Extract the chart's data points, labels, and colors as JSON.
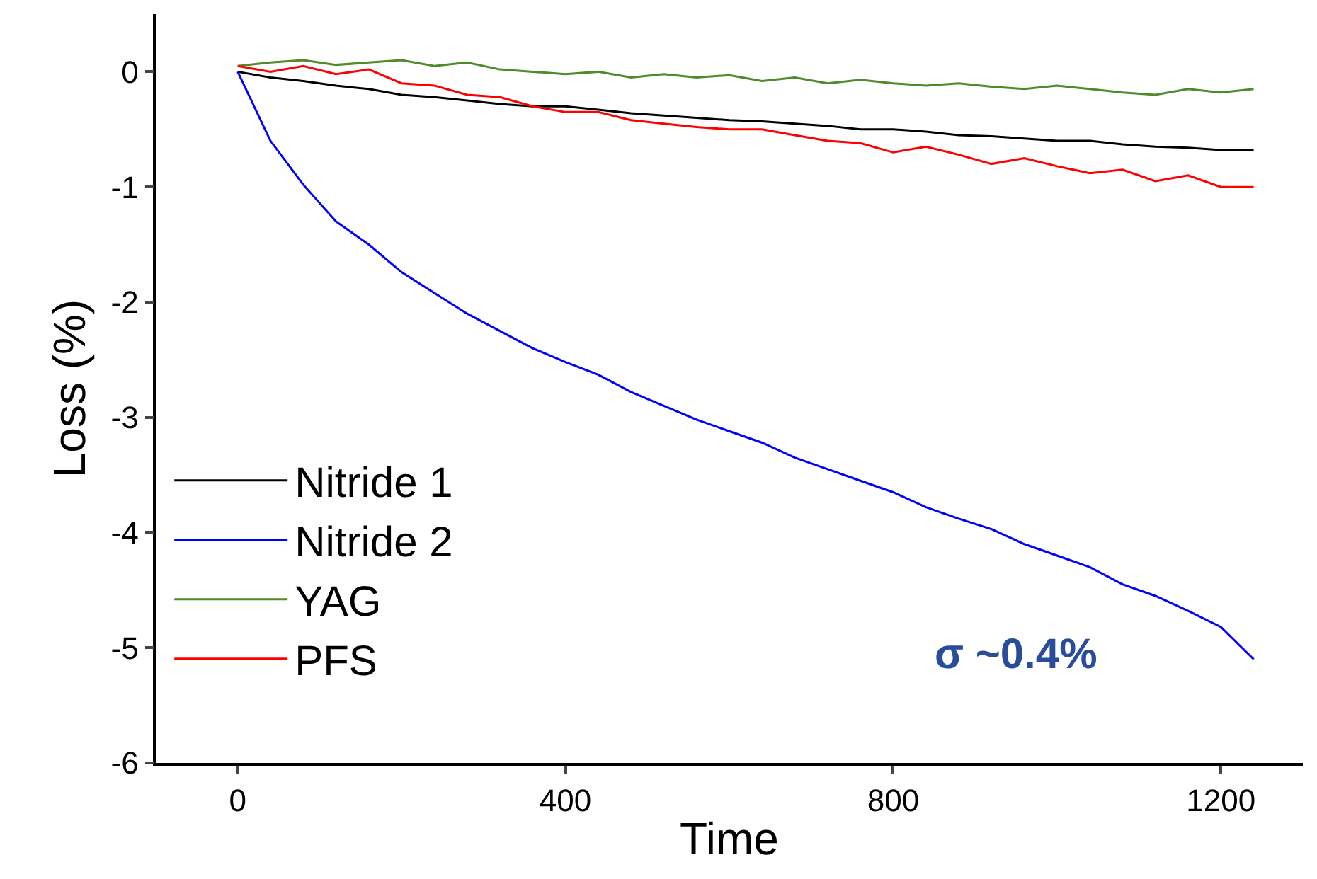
{
  "chart_data": {
    "type": "line",
    "xlabel": "Time",
    "ylabel": "Loss (%)",
    "x": [
      0,
      40,
      80,
      120,
      160,
      200,
      240,
      280,
      320,
      360,
      400,
      440,
      480,
      520,
      560,
      600,
      640,
      680,
      720,
      760,
      800,
      840,
      880,
      920,
      960,
      1000,
      1040,
      1080,
      1120,
      1160,
      1200,
      1240
    ],
    "series": [
      {
        "name": "Nitride 1",
        "color": "#000000",
        "values": [
          0,
          -0.05,
          -0.08,
          -0.12,
          -0.15,
          -0.2,
          -0.22,
          -0.25,
          -0.28,
          -0.3,
          -0.3,
          -0.33,
          -0.36,
          -0.38,
          -0.4,
          -0.42,
          -0.43,
          -0.45,
          -0.47,
          -0.5,
          -0.5,
          -0.52,
          -0.55,
          -0.56,
          -0.58,
          -0.6,
          -0.6,
          -0.63,
          -0.65,
          -0.66,
          -0.68,
          -0.68
        ]
      },
      {
        "name": "Nitride 2",
        "color": "#0000ff",
        "values": [
          0,
          -0.6,
          -0.98,
          -1.3,
          -1.5,
          -1.74,
          -1.92,
          -2.1,
          -2.25,
          -2.4,
          -2.52,
          -2.63,
          -2.78,
          -2.9,
          -3.02,
          -3.12,
          -3.22,
          -3.35,
          -3.45,
          -3.55,
          -3.65,
          -3.78,
          -3.88,
          -3.97,
          -4.1,
          -4.2,
          -4.3,
          -4.45,
          -4.55,
          -4.68,
          -4.82,
          -5.1
        ]
      },
      {
        "name": "YAG",
        "color": "#4f8a2b",
        "values": [
          0.05,
          0.08,
          0.1,
          0.06,
          0.08,
          0.1,
          0.05,
          0.08,
          0.02,
          0,
          -0.02,
          0,
          -0.05,
          -0.02,
          -0.05,
          -0.03,
          -0.08,
          -0.05,
          -0.1,
          -0.07,
          -0.1,
          -0.12,
          -0.1,
          -0.13,
          -0.15,
          -0.12,
          -0.15,
          -0.18,
          -0.2,
          -0.15,
          -0.18,
          -0.15
        ]
      },
      {
        "name": "PFS",
        "color": "#ff0000",
        "values": [
          0.05,
          0,
          0.05,
          -0.02,
          0.02,
          -0.1,
          -0.12,
          -0.2,
          -0.22,
          -0.3,
          -0.35,
          -0.35,
          -0.42,
          -0.45,
          -0.48,
          -0.5,
          -0.5,
          -0.55,
          -0.6,
          -0.62,
          -0.7,
          -0.65,
          -0.72,
          -0.8,
          -0.75,
          -0.82,
          -0.88,
          -0.85,
          -0.95,
          -0.9,
          -1.0,
          -1.0
        ]
      }
    ],
    "xlim": [
      -100,
      1300
    ],
    "xticks": [
      0,
      400,
      800,
      1200
    ],
    "ylim": [
      -6,
      0.5
    ],
    "yticks": [
      -6,
      -5,
      -4,
      -3,
      -2,
      -1,
      0
    ],
    "annotations": [
      "σ ~0.4%"
    ],
    "legend": "bottom left",
    "marker": "none",
    "line_style": "solid"
  }
}
